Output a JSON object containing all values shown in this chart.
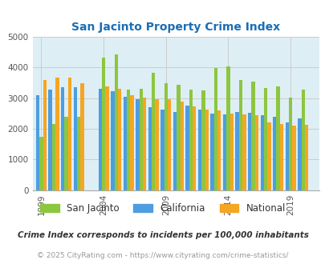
{
  "title": "San Jacinto Property Crime Index",
  "subtitle": "Crime Index corresponds to incidents per 100,000 inhabitants",
  "copyright": "© 2025 CityRating.com - https://www.cityrating.com/crime-statistics/",
  "year_data": {
    "1999": [
      1750,
      3100,
      3590
    ],
    "2000": [
      2150,
      3290,
      3680
    ],
    "2001": [
      2400,
      3350,
      3670
    ],
    "2002": [
      2380,
      3360,
      3480
    ],
    "2004": [
      4330,
      3310,
      3390
    ],
    "2005": [
      4440,
      3220,
      3320
    ],
    "2006": [
      3280,
      3040,
      3090
    ],
    "2007": [
      3300,
      2960,
      3030
    ],
    "2008": [
      3820,
      2710,
      2970
    ],
    "2009": [
      3490,
      2640,
      2960
    ],
    "2010": [
      3440,
      2560,
      2900
    ],
    "2011": [
      3290,
      2760,
      2740
    ],
    "2012": [
      3260,
      2640,
      2640
    ],
    "2013": [
      3990,
      2500,
      2590
    ],
    "2014": [
      4050,
      2470,
      2510
    ],
    "2015": [
      3600,
      2560,
      2470
    ],
    "2016": [
      3530,
      2520,
      2440
    ],
    "2017": [
      3330,
      2440,
      2220
    ],
    "2018": [
      3380,
      2380,
      2150
    ],
    "2019": [
      3010,
      2210,
      2100
    ],
    "2020": [
      3290,
      2350,
      2130
    ]
  },
  "year_order": [
    1999,
    2000,
    2001,
    2002,
    2004,
    2005,
    2006,
    2007,
    2008,
    2009,
    2010,
    2011,
    2012,
    2013,
    2014,
    2015,
    2016,
    2017,
    2018,
    2019,
    2020
  ],
  "color_sj": "#8dc63f",
  "color_ca": "#4d9de0",
  "color_nat": "#f5a623",
  "bg_color": "#deeef5",
  "title_color": "#1a6eb5",
  "subtitle_color": "#333333",
  "copyright_color": "#999999",
  "ylim": [
    0,
    5000
  ],
  "yticks": [
    0,
    1000,
    2000,
    3000,
    4000,
    5000
  ],
  "xtick_years": [
    1999,
    2004,
    2009,
    2014,
    2019
  ],
  "grid_color": "#cccccc",
  "bar_width": 0.28
}
